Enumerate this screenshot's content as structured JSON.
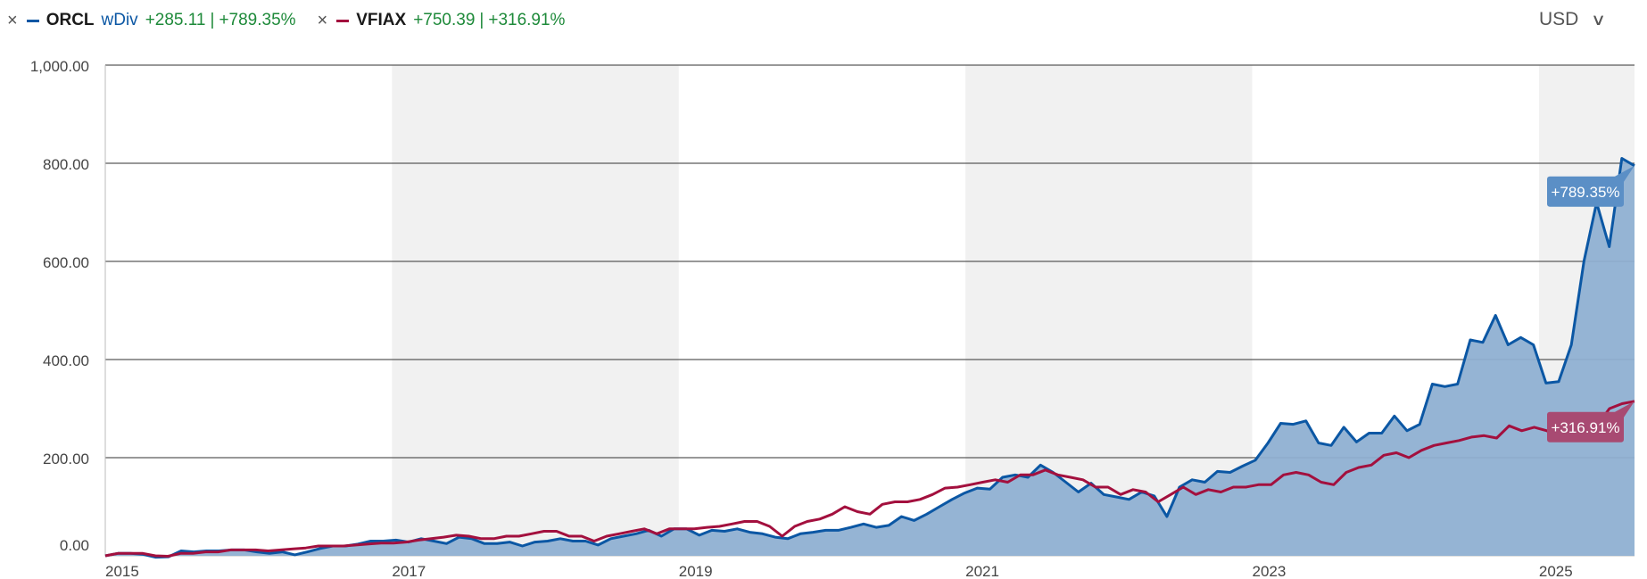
{
  "legend": {
    "items": [
      {
        "ticker": "ORCL",
        "sub": "wDiv",
        "change": "+285.11",
        "pct": "+789.35%",
        "color": "#0b57a4"
      },
      {
        "ticker": "VFIAX",
        "sub": "",
        "change": "+750.39",
        "pct": "+316.91%",
        "color": "#a3103e"
      }
    ],
    "close_glyph": "×",
    "separator": "|"
  },
  "currency": {
    "label": "USD",
    "icon": "chevron-down-icon"
  },
  "chart_data": {
    "type": "line",
    "y_tick_labels": [
      "1,000.00",
      "800.00",
      "600.00",
      "400.00",
      "200.00",
      "0.00"
    ],
    "ylim": [
      0,
      1000
    ],
    "x_tick_labels": [
      "2015",
      "2017",
      "2019",
      "2021",
      "2023",
      "2025"
    ],
    "xlim": [
      "2015-01",
      "2025-09"
    ],
    "shaded_year_bands": [
      [
        "2017",
        "2018"
      ],
      [
        "2021",
        "2022"
      ],
      [
        "2025",
        "2025"
      ]
    ],
    "series": [
      {
        "name": "ORCL",
        "color": "#0b57a4",
        "area_fill": "#8fb0d2",
        "end_label": "+789.35%",
        "values": [
          0,
          5,
          5,
          3,
          -3,
          -2,
          10,
          8,
          10,
          10,
          12,
          12,
          8,
          5,
          8,
          2,
          8,
          15,
          20,
          20,
          24,
          30,
          30,
          32,
          28,
          35,
          30,
          25,
          38,
          35,
          25,
          25,
          28,
          20,
          28,
          30,
          35,
          30,
          30,
          22,
          35,
          40,
          45,
          52,
          40,
          55,
          55,
          42,
          52,
          50,
          55,
          48,
          45,
          38,
          35,
          45,
          48,
          52,
          52,
          58,
          65,
          58,
          62,
          80,
          72,
          85,
          100,
          115,
          128,
          138,
          136,
          160,
          165,
          160,
          185,
          170,
          150,
          130,
          148,
          125,
          120,
          115,
          130,
          122,
          80,
          140,
          155,
          150,
          172,
          170,
          183,
          195,
          230,
          270,
          268,
          275,
          230,
          225,
          262,
          232,
          250,
          250,
          285,
          255,
          268,
          350,
          345,
          350,
          440,
          435,
          490,
          430,
          445,
          430,
          352,
          355,
          430,
          600,
          720,
          630,
          810,
          795
        ]
      },
      {
        "name": "VFIAX",
        "color": "#a3103e",
        "area_fill": "",
        "end_label": "+316.91%",
        "values": [
          0,
          5,
          5,
          5,
          0,
          -1,
          5,
          5,
          8,
          8,
          12,
          12,
          12,
          10,
          12,
          14,
          16,
          20,
          20,
          20,
          22,
          24,
          26,
          26,
          28,
          32,
          35,
          38,
          42,
          40,
          35,
          35,
          40,
          40,
          45,
          50,
          50,
          40,
          40,
          30,
          40,
          45,
          50,
          55,
          45,
          55,
          55,
          55,
          58,
          60,
          65,
          70,
          70,
          60,
          40,
          60,
          70,
          75,
          85,
          100,
          90,
          85,
          105,
          110,
          110,
          115,
          125,
          138,
          140,
          145,
          150,
          155,
          150,
          165,
          165,
          175,
          165,
          160,
          155,
          140,
          140,
          125,
          135,
          130,
          110,
          125,
          140,
          125,
          135,
          130,
          140,
          140,
          145,
          145,
          165,
          170,
          165,
          150,
          145,
          170,
          180,
          185,
          205,
          210,
          200,
          215,
          225,
          230,
          235,
          242,
          245,
          240,
          265,
          255,
          262,
          255,
          240,
          238,
          255,
          265,
          300,
          310,
          315
        ]
      }
    ]
  }
}
